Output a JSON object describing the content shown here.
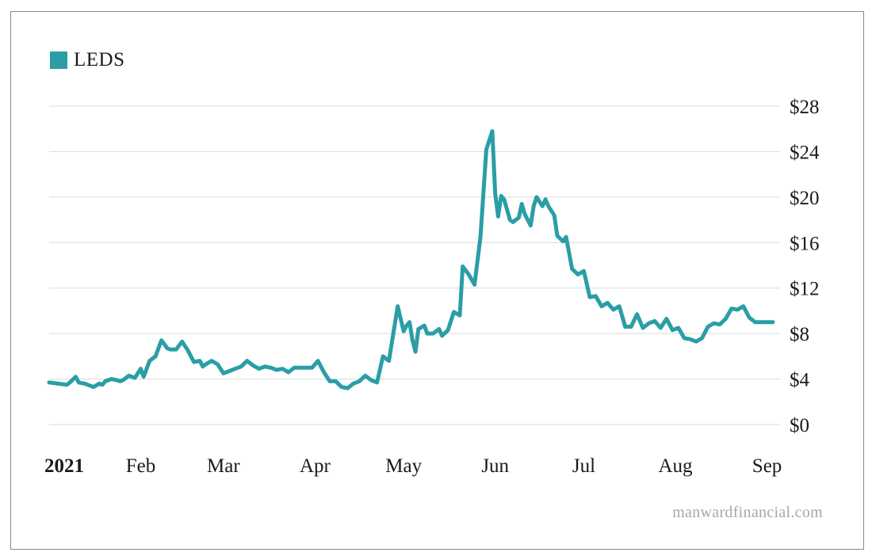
{
  "legend": {
    "label": "LEDS"
  },
  "watermark": "manwardfinancial.com",
  "colors": {
    "series": "#2a9ea6",
    "grid": "#d9d9d9",
    "text": "#1a1a1a",
    "watermark": "#a8a8a8"
  },
  "chart_data": {
    "type": "line",
    "title": "",
    "xlabel": "",
    "ylabel": "",
    "ylim": [
      0,
      28
    ],
    "y_ticks": [
      0,
      4,
      8,
      12,
      16,
      20,
      24,
      28
    ],
    "y_tick_labels": [
      "$0",
      "$4",
      "$8",
      "$12",
      "$16",
      "$20",
      "$24",
      "$28"
    ],
    "x_range": [
      0,
      256
    ],
    "x_tick_positions": [
      0,
      31,
      59,
      90,
      120,
      151,
      181,
      212,
      243
    ],
    "x_tick_labels": [
      "2021",
      "Feb",
      "Mar",
      "Apr",
      "May",
      "Jun",
      "Jul",
      "Aug",
      "Sep"
    ],
    "legend_position": "top-left",
    "grid": true,
    "series": [
      {
        "name": "LEDS",
        "x": [
          0,
          6,
          7,
          9,
          10,
          12,
          14,
          15,
          17,
          18,
          19,
          21,
          23,
          24,
          25,
          27,
          29,
          31,
          32,
          34,
          36,
          38,
          40,
          41,
          43,
          45,
          47,
          49,
          51,
          52,
          53,
          55,
          57,
          59,
          61,
          63,
          65,
          67,
          69,
          71,
          73,
          75,
          77,
          79,
          81,
          83,
          85,
          87,
          89,
          91,
          93,
          95,
          97,
          99,
          101,
          103,
          105,
          107,
          109,
          111,
          113,
          115,
          118,
          120,
          121,
          122,
          123,
          124,
          125,
          127,
          128,
          130,
          132,
          133,
          135,
          137,
          139,
          140,
          142,
          144,
          146,
          148,
          150,
          151,
          152,
          153,
          154,
          156,
          157,
          159,
          160,
          161,
          163,
          164,
          165,
          167,
          168,
          169,
          171,
          172,
          174,
          175,
          177,
          179,
          181,
          183,
          185,
          187,
          189,
          191,
          193,
          195,
          197,
          199,
          201,
          203,
          205,
          207,
          209,
          211,
          213,
          215,
          217,
          219,
          221,
          223,
          225,
          227,
          229,
          231,
          233,
          235,
          237,
          239,
          241,
          243,
          245
        ],
        "values": [
          3.7,
          3.5,
          3.7,
          4.2,
          3.7,
          3.6,
          3.4,
          3.3,
          3.6,
          3.5,
          3.8,
          4.0,
          3.9,
          3.8,
          3.9,
          4.3,
          4.1,
          4.9,
          4.2,
          5.6,
          6.0,
          7.4,
          6.7,
          6.6,
          6.6,
          7.3,
          6.5,
          5.5,
          5.6,
          5.1,
          5.3,
          5.6,
          5.3,
          4.5,
          4.7,
          4.9,
          5.1,
          5.6,
          5.2,
          4.9,
          5.1,
          5.0,
          4.8,
          4.9,
          4.6,
          5.0,
          5.0,
          5.0,
          5.0,
          5.6,
          4.6,
          3.8,
          3.8,
          3.3,
          3.2,
          3.6,
          3.8,
          4.3,
          3.9,
          3.7,
          6.0,
          5.6,
          10.4,
          8.2,
          8.7,
          9.0,
          7.4,
          6.4,
          8.4,
          8.7,
          8.0,
          8.0,
          8.4,
          7.8,
          8.3,
          9.9,
          9.6,
          13.9,
          13.2,
          12.3,
          16.5,
          24.2,
          25.8,
          20.3,
          18.3,
          20.1,
          19.8,
          18.0,
          17.8,
          18.2,
          19.4,
          18.5,
          17.5,
          19.2,
          20.0,
          19.2,
          19.8,
          19.2,
          18.4,
          16.6,
          16.1,
          16.5,
          13.7,
          13.2,
          13.5,
          11.2,
          11.3,
          10.4,
          10.7,
          10.1,
          10.4,
          8.6,
          8.6,
          9.7,
          8.5,
          8.9,
          9.1,
          8.5,
          9.3,
          8.3,
          8.5,
          7.6,
          7.5,
          7.3,
          7.6,
          8.6,
          8.9,
          8.8,
          9.3,
          10.2,
          10.1,
          10.4,
          9.4,
          9.0,
          9.0,
          9.0,
          9.0
        ]
      }
    ]
  }
}
